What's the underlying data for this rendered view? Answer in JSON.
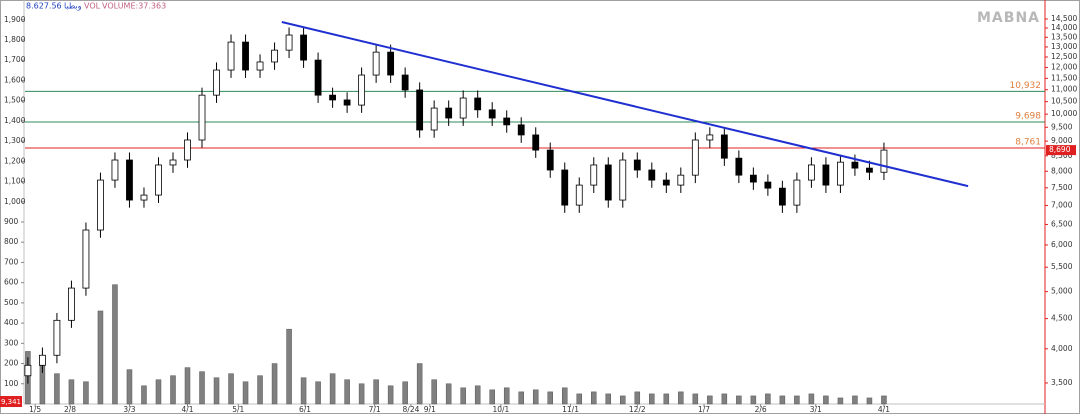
{
  "chart_data": {
    "type": "candlestick",
    "header": {
      "price": "8.627.56",
      "symbol": "وبطبا",
      "vol": "VOL",
      "volume": "VOLUME:37.363"
    },
    "watermark": "MABNA",
    "log_scale": true,
    "xlim": [
      -0.2,
      70.1
    ],
    "xticks": [
      {
        "value": 0.5,
        "label": "1/5"
      },
      {
        "value": 2.9,
        "label": "2/8"
      },
      {
        "value": 7.0,
        "label": "3/3"
      },
      {
        "value": 11.0,
        "label": "4/1"
      },
      {
        "value": 14.5,
        "label": "5/1"
      },
      {
        "value": 19.1,
        "label": "6/1"
      },
      {
        "value": 23.9,
        "label": "7/1"
      },
      {
        "value": 26.4,
        "label": "8/24"
      },
      {
        "value": 27.7,
        "label": "9/1"
      },
      {
        "value": 32.6,
        "label": "10/1"
      },
      {
        "value": 37.4,
        "label": "11/1"
      },
      {
        "value": 42.0,
        "label": "12/2"
      },
      {
        "value": 46.6,
        "label": "1/7"
      },
      {
        "value": 50.5,
        "label": "2/6"
      },
      {
        "value": 54.3,
        "label": "3/1"
      },
      {
        "value": 59.0,
        "label": "4/1"
      }
    ],
    "ylim": [
      3224,
      15315
    ],
    "yticks": [
      {
        "value": 3500,
        "label": "3,500"
      },
      {
        "value": 4000,
        "label": "4,000"
      },
      {
        "value": 4500,
        "label": "4,500"
      },
      {
        "value": 5000,
        "label": "5,000"
      },
      {
        "value": 5500,
        "label": "5,500"
      },
      {
        "value": 6000,
        "label": "6,000"
      },
      {
        "value": 6500,
        "label": "6,500"
      },
      {
        "value": 7000,
        "label": "7,000"
      },
      {
        "value": 7500,
        "label": "7,500"
      },
      {
        "value": 8000,
        "label": "8,000"
      },
      {
        "value": 8500,
        "label": "8,500"
      },
      {
        "value": 9000,
        "label": "9,000"
      },
      {
        "value": 9500,
        "label": "9,500"
      },
      {
        "value": 10000,
        "label": "10,000"
      },
      {
        "value": 10500,
        "label": "10,500"
      },
      {
        "value": 11000,
        "label": "11,000"
      },
      {
        "value": 11500,
        "label": "11,500"
      },
      {
        "value": 12000,
        "label": "12,000"
      },
      {
        "value": 12500,
        "label": "12,500"
      },
      {
        "value": 13000,
        "label": "13,000"
      },
      {
        "value": 13500,
        "label": "13,500"
      },
      {
        "value": 14000,
        "label": "14,000"
      },
      {
        "value": 14500,
        "label": "14,500"
      }
    ],
    "y2lim": [
      0,
      1973
    ],
    "y2ticks": [
      100,
      200,
      300,
      400,
      500,
      600,
      700,
      800,
      900,
      {
        "value": 1000,
        "label": "1,000"
      },
      {
        "value": 1100,
        "label": "1,100"
      },
      {
        "value": 1200,
        "label": "1,200"
      },
      {
        "value": 1300,
        "label": "1,300"
      },
      {
        "value": 1400,
        "label": "1,400"
      },
      {
        "value": 1500,
        "label": "1,500"
      },
      {
        "value": 1600,
        "label": "1,600"
      },
      {
        "value": 1700,
        "label": "1,700"
      },
      {
        "value": 1800,
        "label": "1,800"
      },
      {
        "value": 1900,
        "label": "1,900"
      }
    ],
    "open": [
      3600,
      3750,
      3900,
      4470,
      5070,
      6360,
      7730,
      8360,
      7150,
      7290,
      8200,
      8360,
      9040,
      10770,
      11880,
      13250,
      11880,
      12260,
      12840,
      13620,
      12350,
      10770,
      10570,
      10360,
      11650,
      12740,
      11650,
      10990,
      9400,
      10240,
      9850,
      10650,
      10170,
      9850,
      9590,
      9220,
      8690,
      8040,
      7010,
      7580,
      8200,
      7150,
      8360,
      8040,
      7730,
      7580,
      7880,
      9040,
      9220,
      8420,
      7880,
      7670,
      7490,
      7010,
      7730,
      8200,
      7580,
      8290,
      8100,
      7970
    ],
    "high": [
      3870,
      4020,
      4600,
      5220,
      6550,
      7960,
      8610,
      8610,
      7510,
      8450,
      8610,
      9310,
      11090,
      12240,
      13650,
      13650,
      12630,
      13230,
      14030,
      14030,
      12720,
      11090,
      10890,
      12000,
      13120,
      13120,
      12000,
      11320,
      10550,
      10550,
      10970,
      10970,
      10480,
      10150,
      9880,
      9500,
      8950,
      8280,
      7810,
      8450,
      8450,
      8610,
      8610,
      8280,
      7960,
      8120,
      9310,
      9500,
      9500,
      8680,
      8120,
      7900,
      7710,
      7960,
      8450,
      8450,
      8540,
      8540,
      8340,
      8950
    ],
    "low": [
      3490,
      3640,
      3780,
      4340,
      4920,
      6170,
      7500,
      6940,
      6940,
      7070,
      7950,
      8110,
      8770,
      10450,
      11520,
      11520,
      11520,
      11890,
      12450,
      11980,
      10450,
      10250,
      10050,
      10050,
      11300,
      11300,
      10660,
      9120,
      9120,
      9550,
      9550,
      9860,
      9550,
      9300,
      8940,
      8430,
      7800,
      6800,
      6800,
      7350,
      6940,
      6940,
      7800,
      7500,
      7350,
      7350,
      7640,
      8770,
      8170,
      7640,
      7440,
      7270,
      6800,
      6800,
      7500,
      7350,
      7350,
      7860,
      7730,
      7730
    ],
    "close": [
      3750,
      3900,
      4470,
      5070,
      6360,
      7730,
      8360,
      7150,
      7290,
      8200,
      8360,
      9040,
      10770,
      11880,
      13250,
      11880,
      12260,
      12840,
      13620,
      12350,
      10770,
      10570,
      10360,
      11650,
      12740,
      11650,
      10990,
      9400,
      10240,
      9850,
      10650,
      10170,
      9850,
      9590,
      9220,
      8690,
      8040,
      7010,
      7580,
      8200,
      7150,
      8360,
      8040,
      7730,
      7580,
      7880,
      9040,
      9220,
      8420,
      7880,
      7670,
      7490,
      7010,
      7730,
      8200,
      7580,
      8290,
      8100,
      7970,
      8690
    ],
    "volume": {
      "axis": "y2",
      "color": "#808080",
      "values": [
        260,
        240,
        150,
        120,
        110,
        460,
        590,
        170,
        90,
        120,
        140,
        180,
        160,
        130,
        150,
        110,
        140,
        200,
        370,
        130,
        110,
        150,
        120,
        100,
        120,
        90,
        110,
        200,
        120,
        100,
        80,
        90,
        70,
        80,
        60,
        70,
        60,
        80,
        50,
        60,
        50,
        40,
        60,
        50,
        50,
        60,
        50,
        40,
        50,
        40,
        40,
        50,
        40,
        40,
        50,
        40,
        30,
        40,
        30,
        40
      ]
    },
    "levels": [
      {
        "value": 10932,
        "label": "10,932",
        "color": "#2e8b57"
      },
      {
        "value": 9698,
        "label": "9,698",
        "color": "#2e8b57"
      },
      {
        "value": 8761,
        "label": "8,761",
        "color": "#e02020"
      }
    ],
    "trendline": {
      "color": "#2030d0",
      "x": [
        17.5,
        64.8
      ],
      "y": [
        14330,
        7550
      ]
    },
    "last_price": {
      "value": 8690,
      "label": "8,690"
    },
    "corner_label": "9,341"
  }
}
